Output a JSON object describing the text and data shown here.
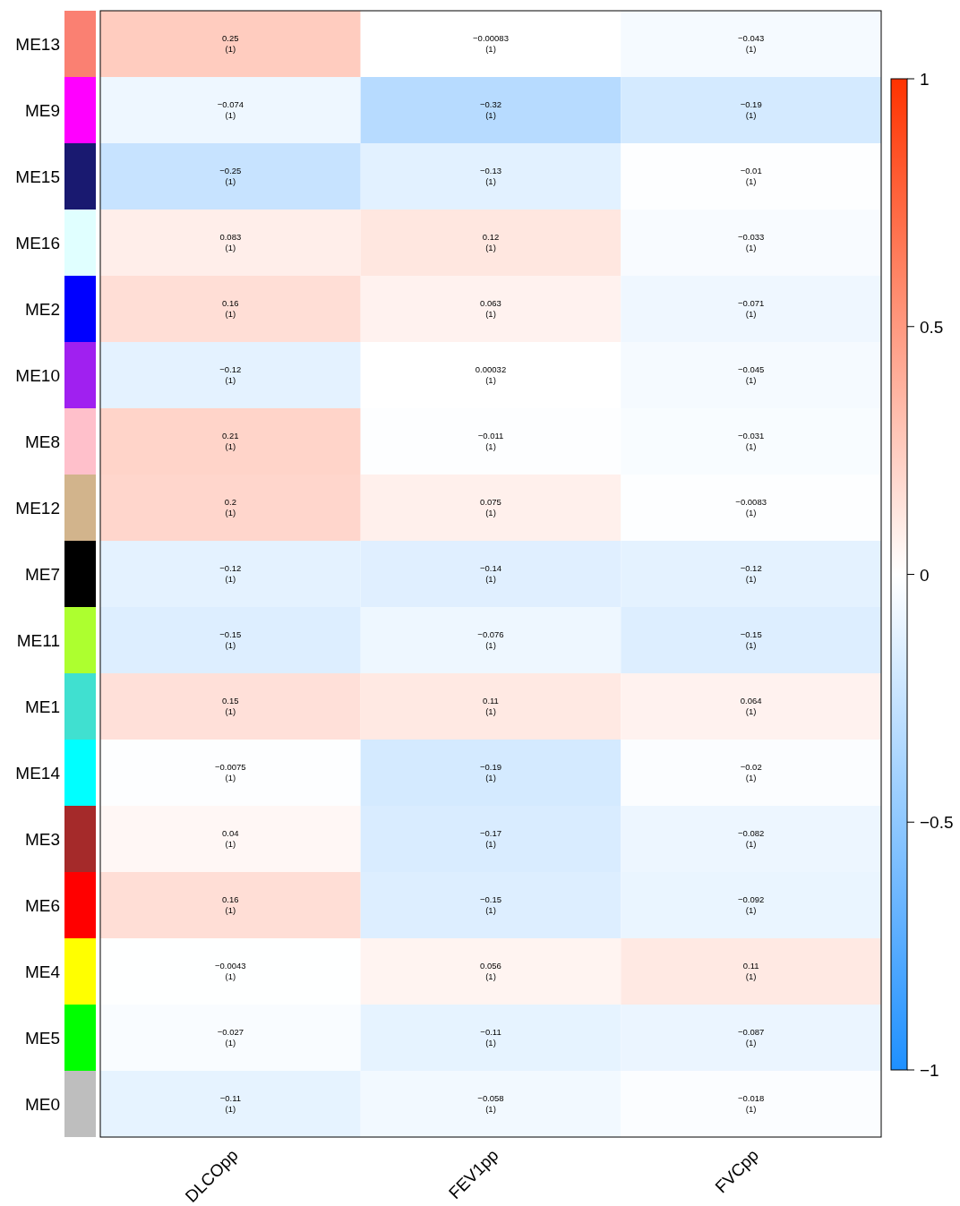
{
  "chart_data": {
    "type": "heatmap",
    "categories": [
      "DLCOpp",
      "FEV1pp",
      "FVCpp"
    ],
    "y_categories": [
      "ME13",
      "ME9",
      "ME15",
      "ME16",
      "ME2",
      "ME10",
      "ME8",
      "ME12",
      "ME7",
      "ME11",
      "ME1",
      "ME14",
      "ME3",
      "ME6",
      "ME4",
      "ME5",
      "ME0"
    ],
    "cells": [
      [
        0.25,
        -0.00083,
        -0.043
      ],
      [
        -0.074,
        -0.32,
        -0.19
      ],
      [
        -0.25,
        -0.13,
        -0.01
      ],
      [
        0.083,
        0.12,
        -0.033
      ],
      [
        0.16,
        0.063,
        -0.071
      ],
      [
        -0.12,
        0.00032,
        -0.045
      ],
      [
        0.21,
        -0.011,
        -0.031
      ],
      [
        0.2,
        0.075,
        -0.0083
      ],
      [
        -0.12,
        -0.14,
        -0.12
      ],
      [
        -0.15,
        -0.076,
        -0.15
      ],
      [
        0.15,
        0.11,
        0.064
      ],
      [
        -0.0075,
        -0.19,
        -0.02
      ],
      [
        0.04,
        -0.17,
        -0.082
      ],
      [
        0.16,
        -0.15,
        -0.092
      ],
      [
        -0.0043,
        0.056,
        0.11
      ],
      [
        -0.027,
        -0.11,
        -0.087
      ],
      [
        -0.11,
        -0.058,
        -0.018
      ]
    ],
    "cell_labels": [
      [
        "0.25\n(1)",
        "−0.00083\n(1)",
        "−0.043\n(1)"
      ],
      [
        "−0.074\n(1)",
        "−0.32\n(1)",
        "−0.19\n(1)"
      ],
      [
        "−0.25\n(1)",
        "−0.13\n(1)",
        "−0.01\n(1)"
      ],
      [
        "0.083\n(1)",
        "0.12\n(1)",
        "−0.033\n(1)"
      ],
      [
        "0.16\n(1)",
        "0.063\n(1)",
        "−0.071\n(1)"
      ],
      [
        "−0.12\n(1)",
        "0.00032\n(1)",
        "−0.045\n(1)"
      ],
      [
        "0.21\n(1)",
        "−0.011\n(1)",
        "−0.031\n(1)"
      ],
      [
        "0.2\n(1)",
        "0.075\n(1)",
        "−0.0083\n(1)"
      ],
      [
        "−0.12\n(1)",
        "−0.14\n(1)",
        "−0.12\n(1)"
      ],
      [
        "−0.15\n(1)",
        "−0.076\n(1)",
        "−0.15\n(1)"
      ],
      [
        "0.15\n(1)",
        "0.11\n(1)",
        "0.064\n(1)"
      ],
      [
        "−0.0075\n(1)",
        "−0.19\n(1)",
        "−0.02\n(1)"
      ],
      [
        "0.04\n(1)",
        "−0.17\n(1)",
        "−0.082\n(1)"
      ],
      [
        "0.16\n(1)",
        "−0.15\n(1)",
        "−0.092\n(1)"
      ],
      [
        "−0.0043\n(1)",
        "0.056\n(1)",
        "0.11\n(1)"
      ],
      [
        "−0.027\n(1)",
        "−0.11\n(1)",
        "−0.087\n(1)"
      ],
      [
        "−0.11\n(1)",
        "−0.058\n(1)",
        "−0.018\n(1)"
      ]
    ],
    "clim": [
      -1,
      1
    ],
    "cticks": [
      {
        "value": -1,
        "label": "−1"
      },
      {
        "value": -0.5,
        "label": "−0.5"
      },
      0,
      0.5,
      1
    ]
  }
}
